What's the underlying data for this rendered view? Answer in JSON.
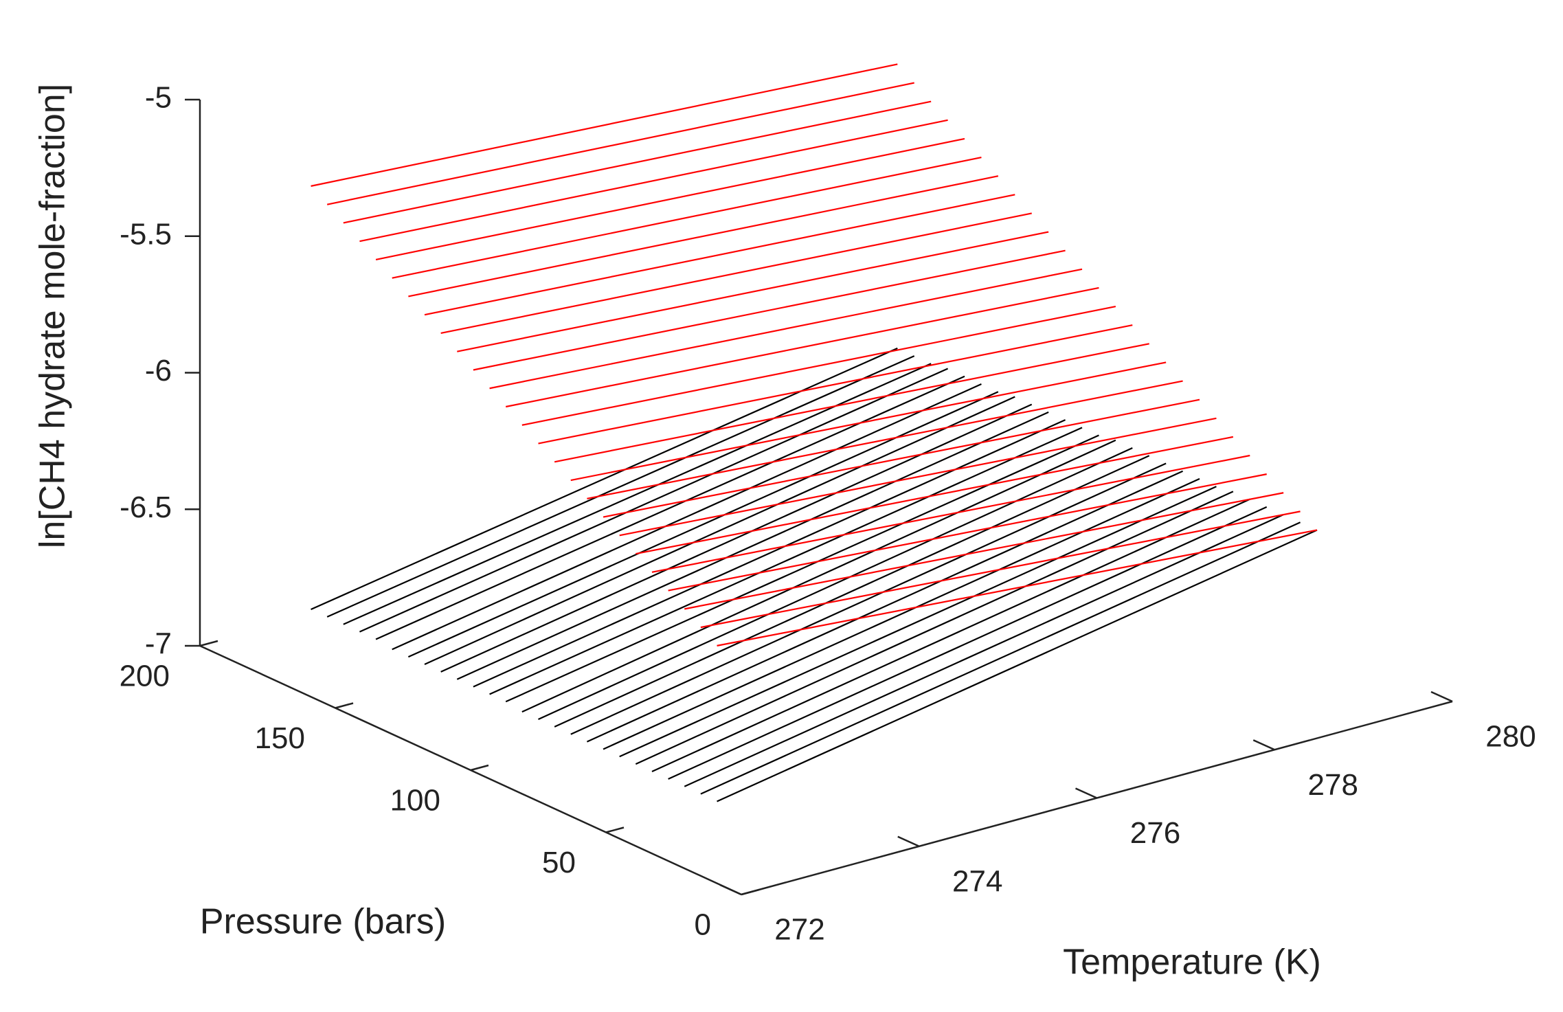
{
  "chart_data": {
    "type": "surface3d",
    "xlabel": "Temperature (K)",
    "ylabel": "Pressure (bars)",
    "zlabel": "ln[CH4 hydrate mole-fraction]",
    "xlim": [
      272,
      280
    ],
    "xticks": [
      272,
      274,
      276,
      278,
      280
    ],
    "ylim": [
      0,
      200
    ],
    "yticks": [
      0,
      50,
      100,
      150,
      200
    ],
    "zlim": [
      -7,
      -5
    ],
    "zticks": [
      -7,
      -6.5,
      -6,
      -5.5,
      -5
    ],
    "temperature": [
      272,
      280
    ],
    "pressure": [
      [
        9,
        50
      ],
      [
        15,
        56.2
      ],
      [
        21,
        62.4
      ],
      [
        27,
        68.6
      ],
      [
        33,
        74.8
      ],
      [
        39,
        81
      ],
      [
        45,
        87.2
      ],
      [
        51,
        93.4
      ],
      [
        57,
        99.6
      ],
      [
        63,
        105.8
      ],
      [
        69,
        112
      ],
      [
        75,
        118.2
      ],
      [
        81,
        124.4
      ],
      [
        87,
        130.6
      ],
      [
        93,
        136.8
      ],
      [
        99,
        143
      ],
      [
        105,
        149.2
      ],
      [
        111,
        155.4
      ],
      [
        117,
        161.6
      ],
      [
        123,
        167.8
      ],
      [
        129,
        174
      ],
      [
        135,
        180.2
      ],
      [
        141,
        186.4
      ],
      [
        147,
        192.6
      ],
      [
        153,
        198.8
      ],
      [
        159,
        205
      ]
    ],
    "surfaces": [
      {
        "color": "#000000",
        "values": [
          [
            -6.7,
            -6.6
          ],
          [
            -6.7,
            -6.6
          ],
          [
            -6.7,
            -6.6
          ],
          [
            -6.7,
            -6.6
          ],
          [
            -6.7,
            -6.6
          ],
          [
            -6.7,
            -6.6
          ],
          [
            -6.7,
            -6.61
          ],
          [
            -6.7,
            -6.61
          ],
          [
            -6.7,
            -6.61
          ],
          [
            -6.7,
            -6.61
          ],
          [
            -6.7,
            -6.61
          ],
          [
            -6.7,
            -6.61
          ],
          [
            -6.7,
            -6.61
          ],
          [
            -6.69,
            -6.62
          ],
          [
            -6.69,
            -6.62
          ],
          [
            -6.69,
            -6.62
          ],
          [
            -6.69,
            -6.62
          ],
          [
            -6.69,
            -6.62
          ],
          [
            -6.69,
            -6.62
          ],
          [
            -6.69,
            -6.63
          ],
          [
            -6.69,
            -6.63
          ],
          [
            -6.68,
            -6.63
          ],
          [
            -6.68,
            -6.63
          ],
          [
            -6.68,
            -6.64
          ],
          [
            -6.68,
            -6.64
          ],
          [
            -6.68,
            -6.64
          ]
        ]
      },
      {
        "color": "#ff0000",
        "values": [
          [
            -6.13,
            -6.6
          ],
          [
            -6.09,
            -6.56
          ],
          [
            -6.05,
            -6.52
          ],
          [
            -6.01,
            -6.48
          ],
          [
            -5.97,
            -6.44
          ],
          [
            -5.93,
            -6.4
          ],
          [
            -5.89,
            -6.36
          ],
          [
            -5.85,
            -6.32
          ],
          [
            -5.81,
            -6.28
          ],
          [
            -5.77,
            -6.24
          ],
          [
            -5.73,
            -6.2
          ],
          [
            -5.69,
            -6.16
          ],
          [
            -5.65,
            -6.12
          ],
          [
            -5.61,
            -6.08
          ],
          [
            -5.57,
            -6.04
          ],
          [
            -5.53,
            -6
          ],
          [
            -5.49,
            -5.96
          ],
          [
            -5.45,
            -5.92
          ],
          [
            -5.41,
            -5.88
          ],
          [
            -5.37,
            -5.84
          ],
          [
            -5.33,
            -5.8
          ],
          [
            -5.29,
            -5.76
          ],
          [
            -5.25,
            -5.72
          ],
          [
            -5.21,
            -5.68
          ],
          [
            -5.17,
            -5.64
          ],
          [
            -5.13,
            -5.6
          ]
        ]
      }
    ]
  }
}
